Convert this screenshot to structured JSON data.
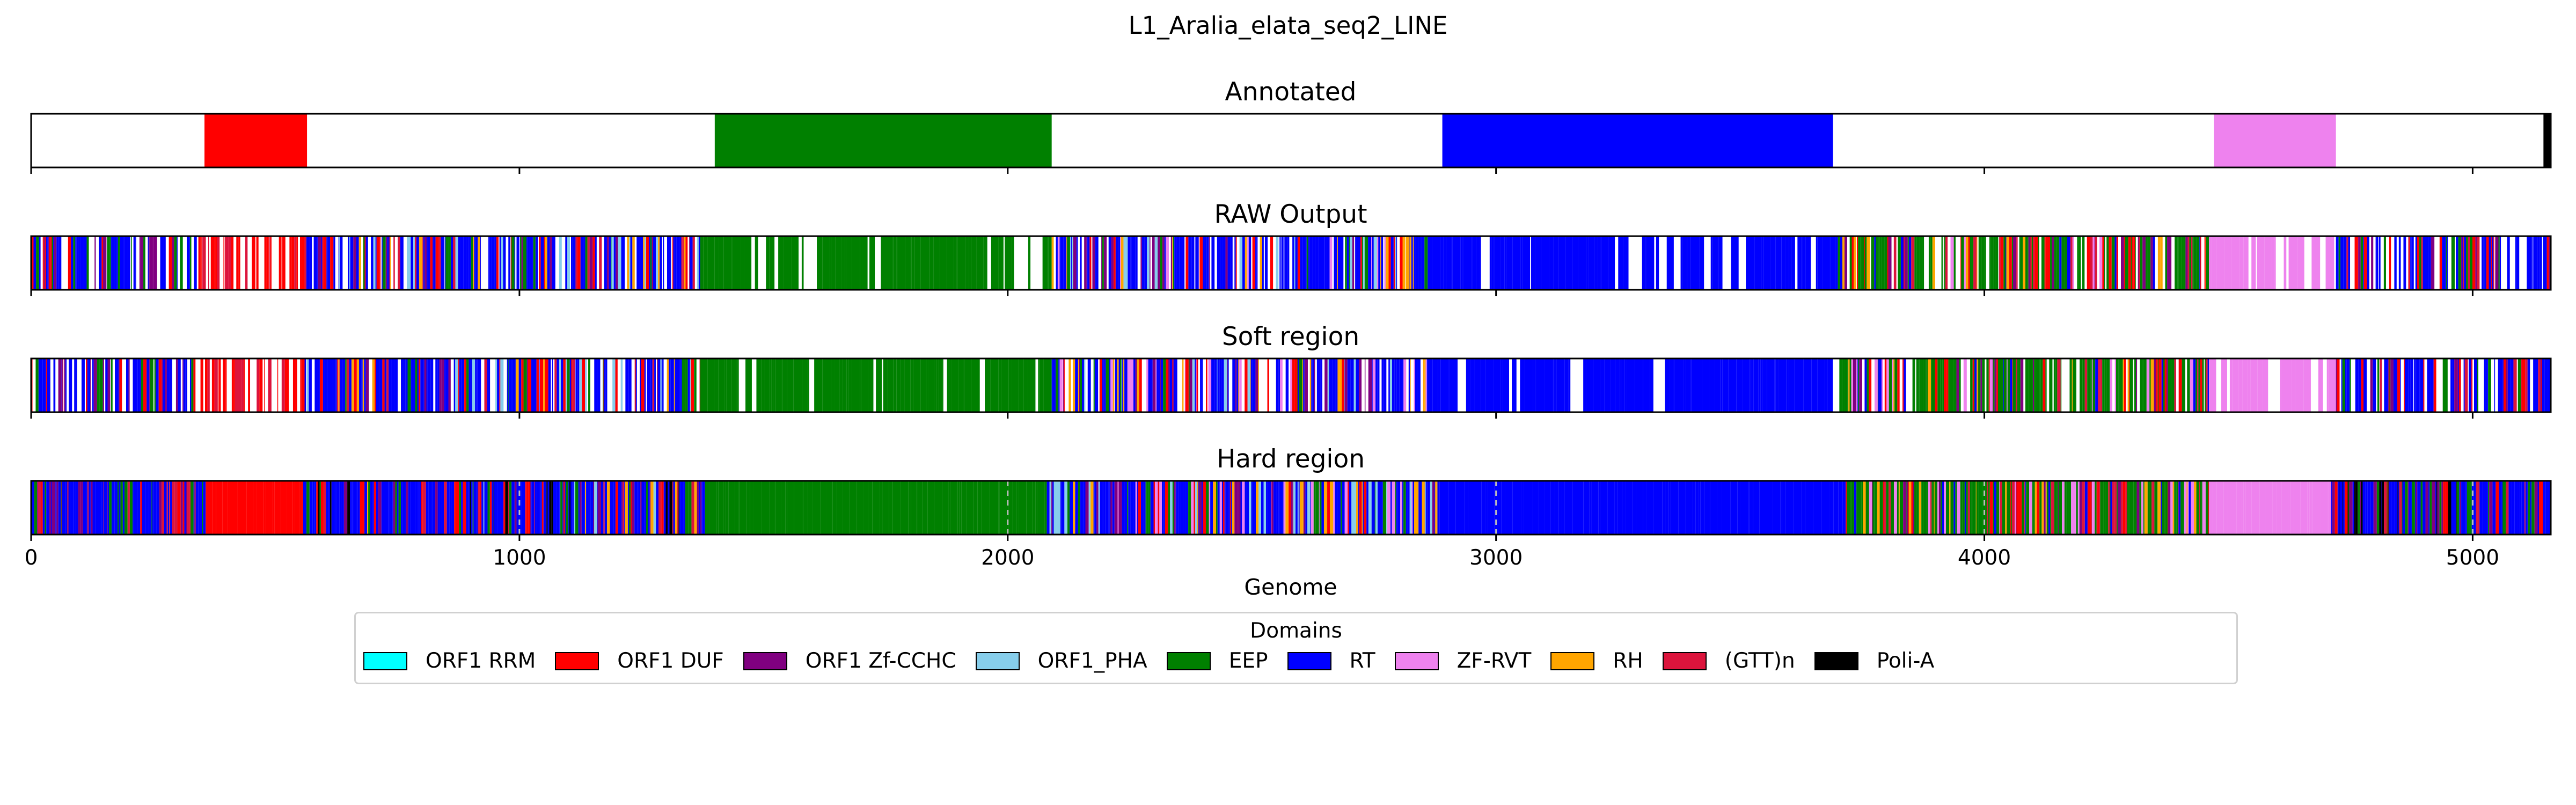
{
  "chart_data": {
    "type": "bar",
    "title": "L1_Aralia_elata_seq2_LINE",
    "xlabel": "Genome",
    "xlim": [
      0,
      5160
    ],
    "x_ticks": [
      0,
      1000,
      2000,
      3000,
      4000,
      5000
    ],
    "grid": "dashed vertical gridlines on bottom panel",
    "legend_title": "Domains",
    "legend_position": "bottom-center",
    "domains": [
      {
        "name": "ORF1 RRM",
        "color": "#00ffff"
      },
      {
        "name": "ORF1 DUF",
        "color": "#ff0000"
      },
      {
        "name": "ORF1 Zf-CCHC",
        "color": "#800080"
      },
      {
        "name": "ORF1_PHA",
        "color": "#87ceeb"
      },
      {
        "name": "EEP",
        "color": "#008000"
      },
      {
        "name": "RT",
        "color": "#0000ff"
      },
      {
        "name": "ZF-RVT",
        "color": "#ee82ee"
      },
      {
        "name": "RH",
        "color": "#ffa500"
      },
      {
        "name": "(GTT)n",
        "color": "#dc143c"
      },
      {
        "name": "Poli-A",
        "color": "#000000"
      }
    ],
    "panels": [
      {
        "title": "Annotated",
        "segments": [
          {
            "domain": "ORF1 DUF",
            "start": 355,
            "end": 565
          },
          {
            "domain": "EEP",
            "start": 1400,
            "end": 2090
          },
          {
            "domain": "RT",
            "start": 2890,
            "end": 3690
          },
          {
            "domain": "ZF-RVT",
            "start": 4470,
            "end": 4720
          },
          {
            "domain": "Poli-A",
            "start": 5145,
            "end": 5160
          }
        ]
      },
      {
        "title": "RAW Output",
        "regions": [
          {
            "start": 0,
            "end": 340,
            "colors": [
              "RT",
              "ORF1 Zf-CCHC",
              "EEP",
              "ORF1 DUF"
            ],
            "gap": 0.3
          },
          {
            "start": 340,
            "end": 560,
            "colors": [
              "ORF1 DUF",
              "(GTT)n"
            ],
            "gap": 0.45
          },
          {
            "start": 560,
            "end": 1370,
            "colors": [
              "RT",
              "EEP",
              "ORF1 Zf-CCHC",
              "RH",
              "ORF1_PHA",
              "ORF1 DUF",
              "(GTT)n"
            ],
            "gap": 0.18
          },
          {
            "start": 1370,
            "end": 2090,
            "colors": [
              "EEP"
            ],
            "gap": 0.15
          },
          {
            "start": 2090,
            "end": 2860,
            "colors": [
              "RT",
              "EEP",
              "ORF1 Zf-CCHC",
              "RH",
              "ZF-RVT",
              "ORF1_PHA",
              "ORF1 DUF"
            ],
            "gap": 0.18
          },
          {
            "start": 2860,
            "end": 3700,
            "colors": [
              "RT"
            ],
            "gap": 0.15
          },
          {
            "start": 3700,
            "end": 4460,
            "colors": [
              "EEP",
              "RT",
              "ORF1 Zf-CCHC",
              "(GTT)n",
              "ZF-RVT",
              "RH",
              "ORF1 DUF"
            ],
            "gap": 0.15
          },
          {
            "start": 4460,
            "end": 4720,
            "colors": [
              "ZF-RVT"
            ],
            "gap": 0.4
          },
          {
            "start": 4720,
            "end": 5160,
            "colors": [
              "RT",
              "EEP",
              "ORF1 Zf-CCHC",
              "ORF1 DUF",
              "(GTT)n"
            ],
            "gap": 0.2
          }
        ]
      },
      {
        "title": "Soft region",
        "regions": [
          {
            "start": 0,
            "end": 340,
            "colors": [
              "RT",
              "ORF1 Zf-CCHC",
              "EEP",
              "ORF1 DUF"
            ],
            "gap": 0.28
          },
          {
            "start": 340,
            "end": 560,
            "colors": [
              "ORF1 DUF",
              "(GTT)n"
            ],
            "gap": 0.4
          },
          {
            "start": 560,
            "end": 1370,
            "colors": [
              "RT",
              "EEP",
              "ORF1 Zf-CCHC",
              "RH",
              "ORF1_PHA",
              "ORF1 DUF",
              "(GTT)n"
            ],
            "gap": 0.16
          },
          {
            "start": 1370,
            "end": 2090,
            "colors": [
              "EEP"
            ],
            "gap": 0.12
          },
          {
            "start": 2090,
            "end": 2860,
            "colors": [
              "RT",
              "EEP",
              "ORF1 Zf-CCHC",
              "RH",
              "ZF-RVT",
              "ORF1_PHA",
              "ORF1 DUF"
            ],
            "gap": 0.16
          },
          {
            "start": 2860,
            "end": 3700,
            "colors": [
              "RT"
            ],
            "gap": 0.12
          },
          {
            "start": 3700,
            "end": 4460,
            "colors": [
              "EEP",
              "RT",
              "ORF1 Zf-CCHC",
              "(GTT)n",
              "ZF-RVT",
              "RH",
              "ORF1 DUF"
            ],
            "gap": 0.13
          },
          {
            "start": 4460,
            "end": 4720,
            "colors": [
              "ZF-RVT"
            ],
            "gap": 0.35
          },
          {
            "start": 4720,
            "end": 5160,
            "colors": [
              "RT",
              "EEP",
              "ORF1 Zf-CCHC",
              "ORF1 DUF",
              "(GTT)n"
            ],
            "gap": 0.18
          }
        ]
      },
      {
        "title": "Hard region",
        "regions": [
          {
            "start": 0,
            "end": 360,
            "colors": [
              "RT",
              "ORF1 Zf-CCHC",
              "EEP",
              "ORF1 DUF",
              "(GTT)n"
            ],
            "gap": 0
          },
          {
            "start": 360,
            "end": 555,
            "colors": [
              "ORF1 DUF"
            ],
            "gap": 0
          },
          {
            "start": 555,
            "end": 1380,
            "colors": [
              "RT",
              "EEP",
              "ORF1 Zf-CCHC",
              "RH",
              "ORF1_PHA",
              "ORF1 DUF",
              "(GTT)n",
              "Poli-A"
            ],
            "gap": 0
          },
          {
            "start": 1380,
            "end": 2080,
            "colors": [
              "EEP"
            ],
            "gap": 0
          },
          {
            "start": 2080,
            "end": 2880,
            "colors": [
              "RT",
              "EEP",
              "ORF1 Zf-CCHC",
              "RH",
              "ZF-RVT",
              "ORF1_PHA",
              "ORF1 DUF"
            ],
            "gap": 0
          },
          {
            "start": 2880,
            "end": 3710,
            "colors": [
              "RT"
            ],
            "gap": 0
          },
          {
            "start": 3710,
            "end": 4460,
            "colors": [
              "EEP",
              "RT",
              "ORF1 Zf-CCHC",
              "(GTT)n",
              "ZF-RVT",
              "RH",
              "ORF1 DUF"
            ],
            "gap": 0
          },
          {
            "start": 4460,
            "end": 4710,
            "colors": [
              "ZF-RVT"
            ],
            "gap": 0
          },
          {
            "start": 4710,
            "end": 5160,
            "colors": [
              "RT",
              "EEP",
              "ORF1 Zf-CCHC",
              "ORF1 DUF",
              "(GTT)n",
              "Poli-A"
            ],
            "gap": 0
          }
        ]
      }
    ]
  }
}
